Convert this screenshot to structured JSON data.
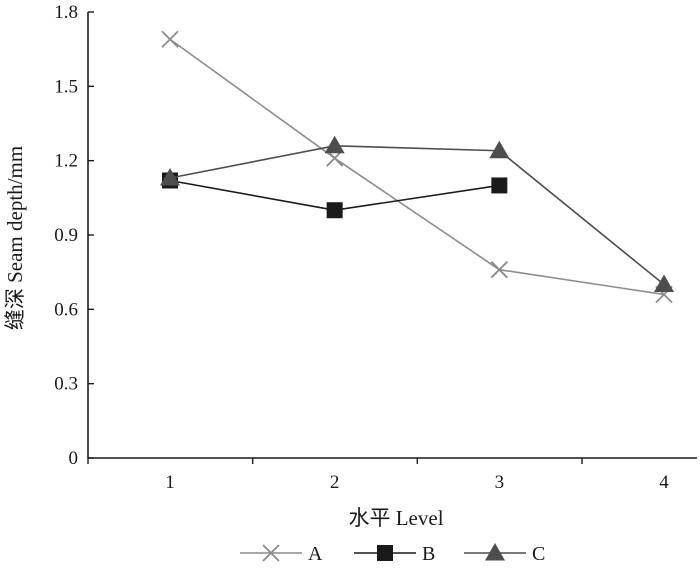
{
  "chart_data": {
    "type": "line",
    "title": "",
    "xlabel": "水平 Level",
    "ylabel": "缝深 Seam depth/mm",
    "x": [
      1,
      2,
      3,
      4
    ],
    "xticks": [
      "1",
      "2",
      "3",
      "4"
    ],
    "yticks": [
      "0",
      "0.3",
      "0.6",
      "0.9",
      "1.2",
      "1.5",
      "1.8"
    ],
    "ylim": [
      0,
      1.8
    ],
    "grid": false,
    "legend_position": "bottom",
    "series": [
      {
        "name": "A",
        "marker": "x",
        "color": "#8c8c8c",
        "values": [
          1.69,
          1.21,
          0.76,
          0.66
        ]
      },
      {
        "name": "B",
        "marker": "square",
        "color": "#1a1a1a",
        "values": [
          1.12,
          1.0,
          1.1,
          null
        ]
      },
      {
        "name": "C",
        "marker": "triangle",
        "color": "#4d4d4d",
        "values": [
          1.13,
          1.26,
          1.24,
          0.7
        ]
      }
    ]
  }
}
